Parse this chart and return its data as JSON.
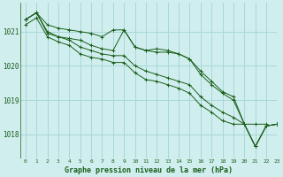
{
  "title": "Graphe pression niveau de la mer (hPa)",
  "bg_color": "#d0eeee",
  "grid_color": "#a8d8d8",
  "line_color": "#1a5e1a",
  "xlim": [
    -0.5,
    23
  ],
  "ylim": [
    1017.3,
    1021.85
  ],
  "yticks": [
    1018,
    1019,
    1020,
    1021
  ],
  "xticks": [
    0,
    1,
    2,
    3,
    4,
    5,
    6,
    7,
    8,
    9,
    10,
    11,
    12,
    13,
    14,
    15,
    16,
    17,
    18,
    19,
    20,
    21,
    22,
    23
  ],
  "series": [
    [
      1021.35,
      1021.55,
      1021.2,
      1021.1,
      1021.05,
      1021.0,
      1020.95,
      1020.85,
      1021.05,
      1021.05,
      1020.55,
      1020.45,
      1020.5,
      1020.45,
      1020.35,
      1020.2,
      1019.85,
      1019.55,
      1019.25,
      1019.1,
      1018.3,
      1018.3,
      1018.3,
      null
    ],
    [
      1021.35,
      1021.55,
      1021.0,
      1020.85,
      1020.8,
      1020.75,
      1020.6,
      1020.5,
      1020.45,
      1021.05,
      1020.55,
      1020.45,
      1020.4,
      1020.4,
      1020.35,
      1020.2,
      1019.75,
      1019.45,
      1019.2,
      1019.0,
      1018.3,
      1017.65,
      1018.25,
      1018.3
    ],
    [
      1021.35,
      1021.55,
      1020.95,
      1020.85,
      1020.75,
      1020.55,
      1020.45,
      1020.35,
      1020.3,
      1020.3,
      1020.0,
      1019.85,
      1019.75,
      1019.65,
      1019.55,
      1019.45,
      1019.1,
      1018.85,
      1018.65,
      1018.5,
      1018.3,
      1017.65,
      1018.25,
      1018.3
    ],
    [
      1021.2,
      1021.4,
      1020.85,
      1020.7,
      1020.6,
      1020.35,
      1020.25,
      1020.2,
      1020.1,
      1020.1,
      1019.8,
      1019.6,
      1019.55,
      1019.45,
      1019.35,
      1019.2,
      1018.85,
      1018.65,
      1018.4,
      1018.3,
      1018.3,
      1017.65,
      1018.25,
      1018.3
    ]
  ]
}
